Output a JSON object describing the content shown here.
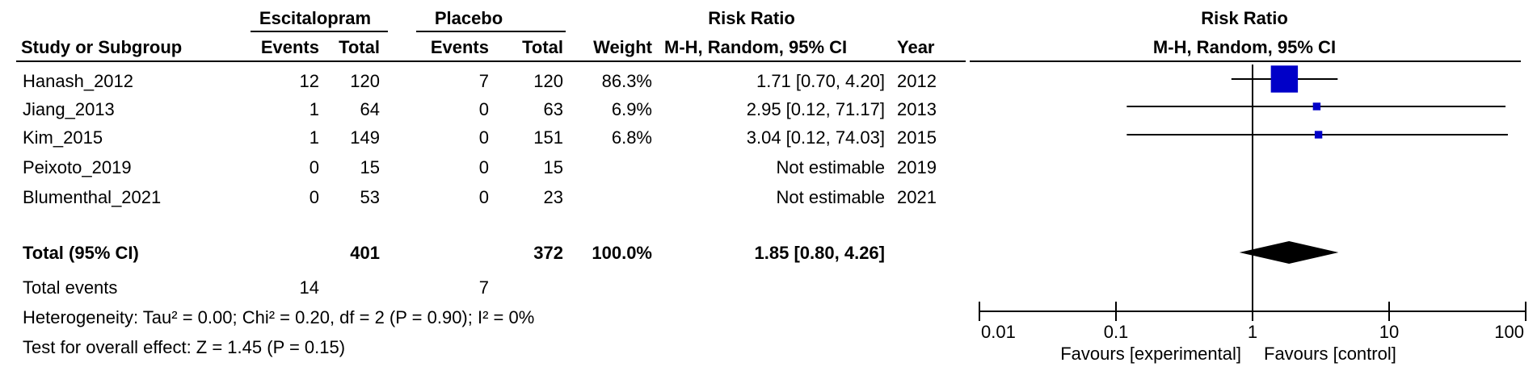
{
  "headers": {
    "group_exp": "Escitalopram",
    "group_ctl": "Placebo",
    "rr_col_title": "Risk Ratio",
    "study": "Study or Subgroup",
    "events": "Events",
    "total": "Total",
    "weight": "Weight",
    "method": "M-H, Random, 95% CI",
    "year": "Year",
    "plot_title": "Risk Ratio",
    "plot_method": "M-H, Random, 95% CI"
  },
  "studies": [
    {
      "name": "Hanash_2012",
      "exp_events": "12",
      "exp_total": "120",
      "ctl_events": "7",
      "ctl_total": "120",
      "weight": "86.3%",
      "ci_text": "1.71 [0.70, 4.20]",
      "year": "2012"
    },
    {
      "name": "Jiang_2013",
      "exp_events": "1",
      "exp_total": "64",
      "ctl_events": "0",
      "ctl_total": "63",
      "weight": "6.9%",
      "ci_text": "2.95 [0.12, 71.17]",
      "year": "2013"
    },
    {
      "name": "Kim_2015",
      "exp_events": "1",
      "exp_total": "149",
      "ctl_events": "0",
      "ctl_total": "151",
      "weight": "6.8%",
      "ci_text": "3.04 [0.12, 74.03]",
      "year": "2015"
    },
    {
      "name": "Peixoto_2019",
      "exp_events": "0",
      "exp_total": "15",
      "ctl_events": "0",
      "ctl_total": "15",
      "weight": "",
      "ci_text": "Not estimable",
      "year": "2019"
    },
    {
      "name": "Blumenthal_2021",
      "exp_events": "0",
      "exp_total": "53",
      "ctl_events": "0",
      "ctl_total": "23",
      "weight": "",
      "ci_text": "Not estimable",
      "year": "2021"
    }
  ],
  "total": {
    "label": "Total (95% CI)",
    "exp_total": "401",
    "ctl_total": "372",
    "weight": "100.0%",
    "ci_text": "1.85 [0.80, 4.26]"
  },
  "total_events": {
    "label": "Total events",
    "exp": "14",
    "ctl": "7"
  },
  "heterogeneity": "Heterogeneity: Tau² = 0.00; Chi² = 0.20, df = 2 (P = 0.90); I² = 0%",
  "overall_effect": "Test for overall effect: Z = 1.45 (P = 0.15)",
  "chart_data": {
    "type": "scatter",
    "title": "Risk Ratio",
    "subtitle": "M-H, Random, 95% CI",
    "x_scale": "log",
    "xlim": [
      0.01,
      100
    ],
    "reference_line": 1,
    "ticks": [
      {
        "value": 0.01,
        "label": "0.01"
      },
      {
        "value": 0.1,
        "label": "0.1"
      },
      {
        "value": 1,
        "label": "1"
      },
      {
        "value": 10,
        "label": "10"
      },
      {
        "value": 100,
        "label": "100"
      }
    ],
    "favours_left": "Favours [experimental]",
    "favours_right": "Favours [control]",
    "studies": [
      {
        "rr": 1.71,
        "lower": 0.7,
        "upper": 4.2,
        "weight": 86.3
      },
      {
        "rr": 2.95,
        "lower": 0.12,
        "upper": 71.17,
        "weight": 6.9
      },
      {
        "rr": 3.04,
        "lower": 0.12,
        "upper": 74.03,
        "weight": 6.8
      },
      null,
      null
    ],
    "pooled": {
      "rr": 1.85,
      "lower": 0.8,
      "upper": 4.26
    },
    "colors": {
      "marker": "#0000c8",
      "diamond": "#000000",
      "line": "#000000"
    }
  }
}
